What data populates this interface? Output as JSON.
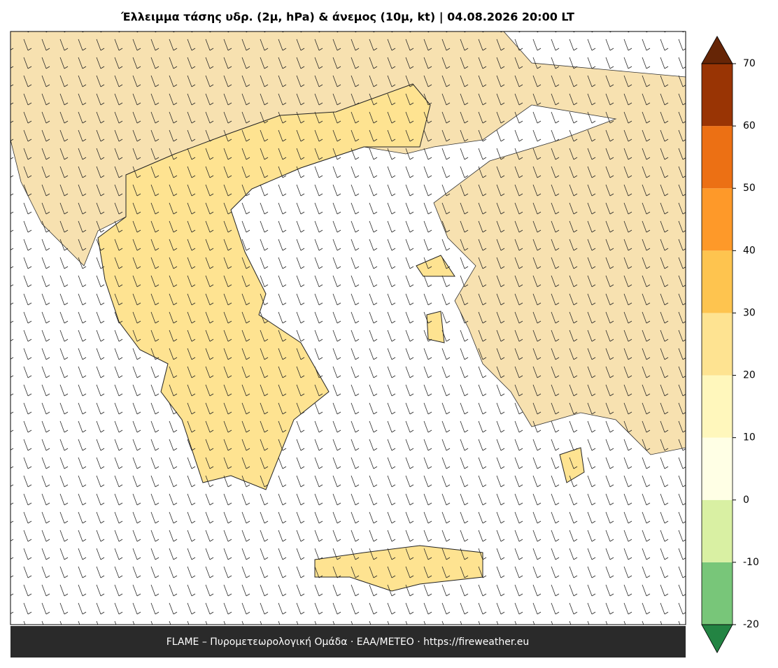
{
  "title": "Έλλειμμα τάσης υδρ. (2μ, hPa) & άνεμος (10μ, kt)  |  04.08.2026 20:00 LT",
  "footer": "FLAME – Πυρομετεωρολογική Ομάδα · ΕΑΑ/METEO · https://fireweather.eu",
  "colorbar": {
    "ticks": [
      -20,
      -10,
      0,
      10,
      20,
      30,
      40,
      50,
      60,
      70
    ],
    "colors": [
      "#78c679",
      "#d9f0a3",
      "#ffffe5",
      "#fff7bc",
      "#fee391",
      "#fec44f",
      "#fe9929",
      "#ec7014",
      "#993404"
    ],
    "below_color": "#238443",
    "above_color": "#662506"
  }
}
